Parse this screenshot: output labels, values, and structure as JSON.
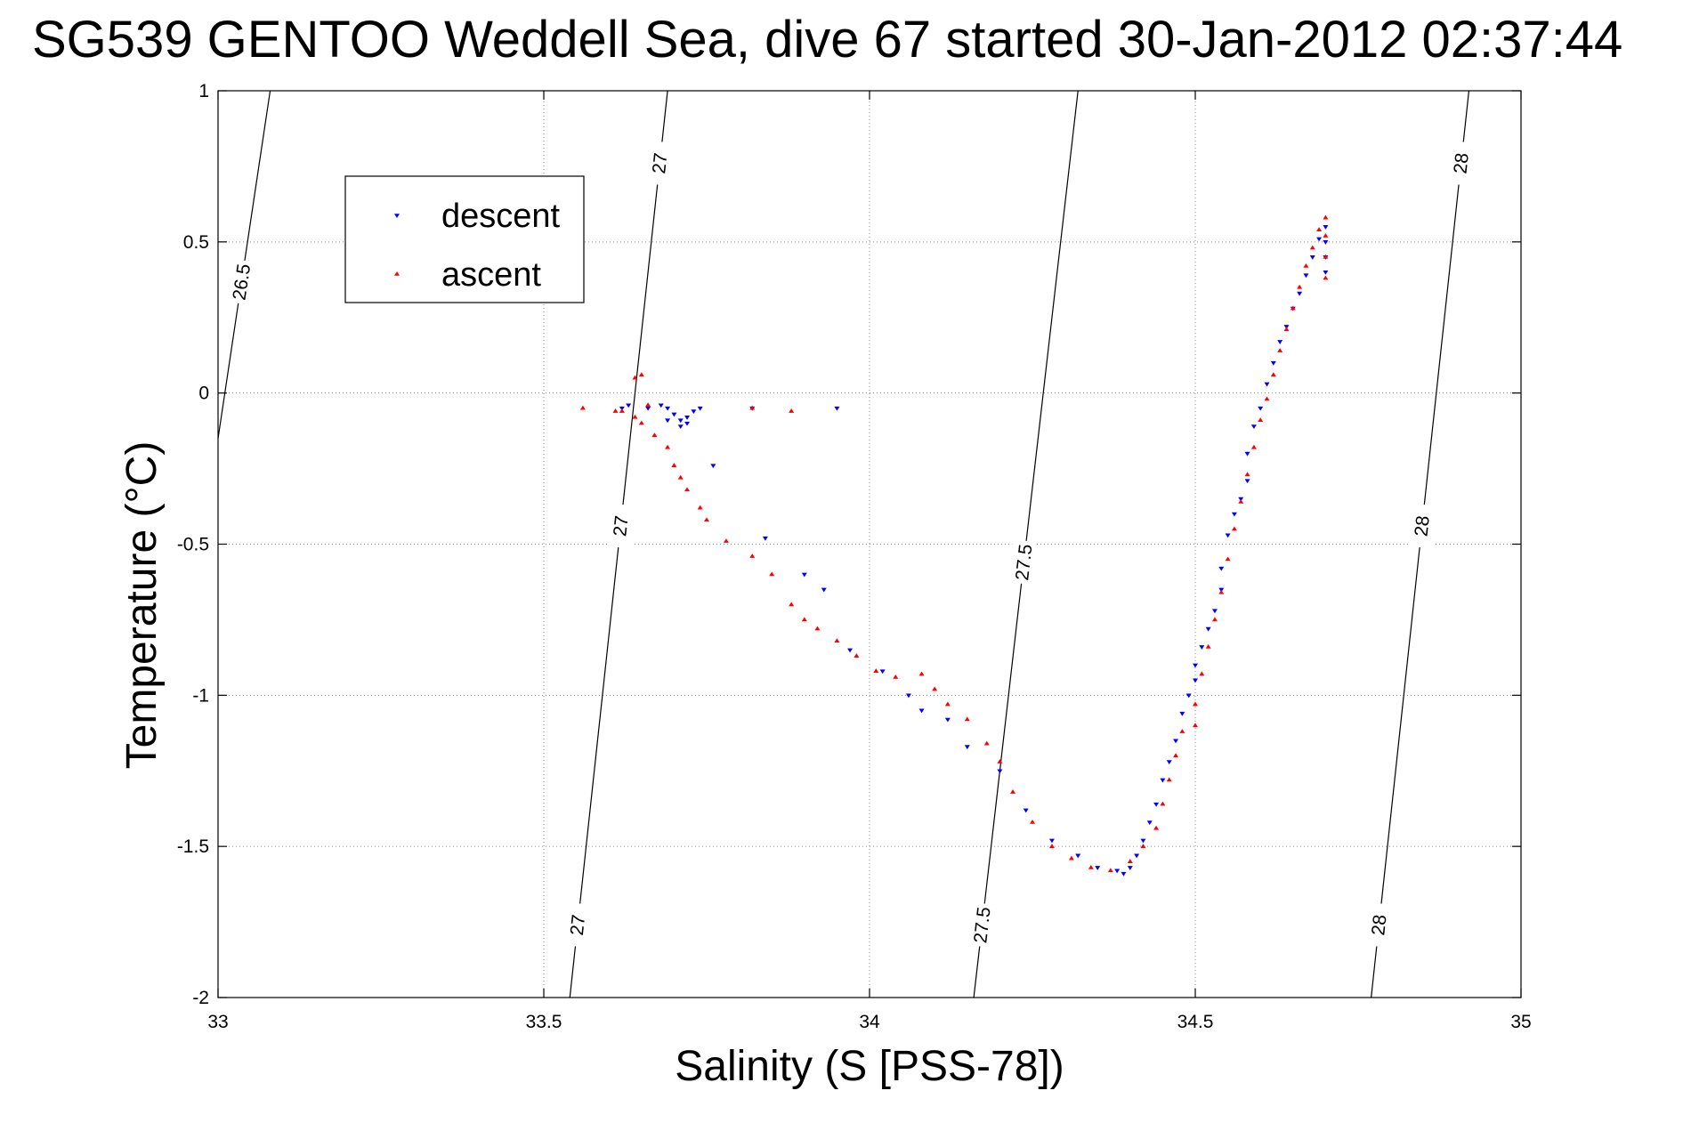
{
  "chart_data": {
    "type": "scatter",
    "title": "SG539 GENTOO Weddell Sea, dive 67 started 30-Jan-2012 02:37:44",
    "xlabel": "Salinity (S [PSS-78])",
    "ylabel": "Temperature (°C)",
    "xlim": [
      33,
      35
    ],
    "ylim": [
      -2,
      1
    ],
    "xticks": [
      33,
      33.5,
      34,
      34.5,
      35
    ],
    "xtick_labels": [
      "33",
      "33.5",
      "34",
      "34.5",
      "35"
    ],
    "yticks": [
      -2,
      -1.5,
      -1,
      -0.5,
      0,
      0.5,
      1
    ],
    "ytick_labels": [
      "-2",
      "-1.5",
      "-1",
      "-0.5",
      "0",
      "0.5",
      "1"
    ],
    "grid": true,
    "legend_position": "top-left",
    "series": [
      {
        "name": "descent",
        "color": "#0000ff",
        "marker": "triangle-down",
        "points": [
          [
            33.62,
            -0.05
          ],
          [
            33.63,
            -0.04
          ],
          [
            33.66,
            -0.05
          ],
          [
            33.68,
            -0.04
          ],
          [
            33.69,
            -0.05
          ],
          [
            33.7,
            -0.07
          ],
          [
            33.71,
            -0.09
          ],
          [
            33.72,
            -0.08
          ],
          [
            33.73,
            -0.06
          ],
          [
            33.74,
            -0.05
          ],
          [
            33.72,
            -0.1
          ],
          [
            33.71,
            -0.11
          ],
          [
            33.69,
            -0.09
          ],
          [
            33.76,
            -0.24
          ],
          [
            33.82,
            -0.05
          ],
          [
            33.95,
            -0.05
          ],
          [
            33.84,
            -0.48
          ],
          [
            33.9,
            -0.6
          ],
          [
            33.93,
            -0.65
          ],
          [
            33.97,
            -0.85
          ],
          [
            34.02,
            -0.92
          ],
          [
            34.06,
            -1.0
          ],
          [
            34.08,
            -1.05
          ],
          [
            34.12,
            -1.08
          ],
          [
            34.15,
            -1.17
          ],
          [
            34.2,
            -1.25
          ],
          [
            34.24,
            -1.38
          ],
          [
            34.28,
            -1.48
          ],
          [
            34.32,
            -1.53
          ],
          [
            34.35,
            -1.57
          ],
          [
            34.38,
            -1.58
          ],
          [
            34.39,
            -1.59
          ],
          [
            34.4,
            -1.57
          ],
          [
            34.41,
            -1.53
          ],
          [
            34.42,
            -1.48
          ],
          [
            34.43,
            -1.42
          ],
          [
            34.44,
            -1.36
          ],
          [
            34.45,
            -1.28
          ],
          [
            34.46,
            -1.22
          ],
          [
            34.47,
            -1.15
          ],
          [
            34.48,
            -1.06
          ],
          [
            34.49,
            -1.0
          ],
          [
            34.5,
            -0.95
          ],
          [
            34.5,
            -0.9
          ],
          [
            34.51,
            -0.84
          ],
          [
            34.52,
            -0.78
          ],
          [
            34.53,
            -0.72
          ],
          [
            34.54,
            -0.65
          ],
          [
            34.54,
            -0.58
          ],
          [
            34.55,
            -0.47
          ],
          [
            34.56,
            -0.4
          ],
          [
            34.57,
            -0.35
          ],
          [
            34.58,
            -0.29
          ],
          [
            34.58,
            -0.2
          ],
          [
            34.59,
            -0.11
          ],
          [
            34.6,
            -0.05
          ],
          [
            34.61,
            0.03
          ],
          [
            34.62,
            0.1
          ],
          [
            34.63,
            0.17
          ],
          [
            34.64,
            0.22
          ],
          [
            34.65,
            0.28
          ],
          [
            34.66,
            0.33
          ],
          [
            34.67,
            0.39
          ],
          [
            34.68,
            0.45
          ],
          [
            34.69,
            0.51
          ],
          [
            34.7,
            0.55
          ],
          [
            34.7,
            0.5
          ],
          [
            34.7,
            0.45
          ],
          [
            34.7,
            0.4
          ]
        ]
      },
      {
        "name": "ascent",
        "color": "#ff0000",
        "marker": "triangle-up",
        "points": [
          [
            33.56,
            -0.05
          ],
          [
            33.61,
            -0.06
          ],
          [
            33.62,
            -0.06
          ],
          [
            33.64,
            -0.08
          ],
          [
            33.65,
            -0.1
          ],
          [
            33.64,
            0.05
          ],
          [
            33.65,
            0.06
          ],
          [
            33.66,
            -0.04
          ],
          [
            33.67,
            -0.14
          ],
          [
            33.69,
            -0.18
          ],
          [
            33.7,
            -0.24
          ],
          [
            33.71,
            -0.28
          ],
          [
            33.72,
            -0.32
          ],
          [
            33.74,
            -0.38
          ],
          [
            33.75,
            -0.42
          ],
          [
            33.78,
            -0.49
          ],
          [
            33.82,
            -0.54
          ],
          [
            33.85,
            -0.6
          ],
          [
            33.88,
            -0.7
          ],
          [
            33.9,
            -0.75
          ],
          [
            33.92,
            -0.78
          ],
          [
            33.95,
            -0.82
          ],
          [
            33.98,
            -0.87
          ],
          [
            34.01,
            -0.92
          ],
          [
            34.04,
            -0.94
          ],
          [
            34.08,
            -0.93
          ],
          [
            34.1,
            -0.98
          ],
          [
            34.12,
            -1.03
          ],
          [
            34.15,
            -1.08
          ],
          [
            34.18,
            -1.16
          ],
          [
            34.2,
            -1.22
          ],
          [
            34.22,
            -1.32
          ],
          [
            34.25,
            -1.42
          ],
          [
            34.28,
            -1.5
          ],
          [
            34.31,
            -1.54
          ],
          [
            34.34,
            -1.57
          ],
          [
            34.37,
            -1.58
          ],
          [
            34.4,
            -1.55
          ],
          [
            34.42,
            -1.5
          ],
          [
            34.44,
            -1.44
          ],
          [
            34.45,
            -1.36
          ],
          [
            34.46,
            -1.28
          ],
          [
            34.47,
            -1.2
          ],
          [
            34.48,
            -1.12
          ],
          [
            34.5,
            -1.1
          ],
          [
            34.5,
            -1.03
          ],
          [
            34.51,
            -0.93
          ],
          [
            34.52,
            -0.84
          ],
          [
            34.53,
            -0.75
          ],
          [
            34.54,
            -0.66
          ],
          [
            34.55,
            -0.55
          ],
          [
            34.56,
            -0.45
          ],
          [
            34.57,
            -0.36
          ],
          [
            34.58,
            -0.27
          ],
          [
            34.59,
            -0.18
          ],
          [
            34.6,
            -0.09
          ],
          [
            34.61,
            -0.02
          ],
          [
            34.62,
            0.06
          ],
          [
            34.63,
            0.14
          ],
          [
            34.64,
            0.21
          ],
          [
            34.65,
            0.28
          ],
          [
            34.66,
            0.35
          ],
          [
            34.67,
            0.42
          ],
          [
            34.68,
            0.48
          ],
          [
            34.69,
            0.54
          ],
          [
            34.7,
            0.58
          ],
          [
            34.7,
            0.52
          ],
          [
            34.7,
            0.45
          ],
          [
            34.7,
            0.38
          ],
          [
            33.82,
            -0.05
          ],
          [
            33.88,
            -0.06
          ]
        ]
      }
    ],
    "density_contours": [
      {
        "level": "26.5",
        "points": [
          [
            33.0,
            -0.15
          ],
          [
            33.08,
            1.0
          ]
        ],
        "labels": [
          "26.5"
        ]
      },
      {
        "level": "27",
        "points": [
          [
            33.54,
            -2.0
          ],
          [
            33.69,
            1.0
          ]
        ],
        "labels": [
          "27",
          "27",
          "27"
        ]
      },
      {
        "level": "27.5",
        "points": [
          [
            34.16,
            -2.0
          ],
          [
            34.32,
            1.0
          ]
        ],
        "labels": [
          "27.5",
          "27.5"
        ]
      },
      {
        "level": "28",
        "points": [
          [
            34.77,
            -2.0
          ],
          [
            34.92,
            1.0
          ]
        ],
        "labels": [
          "28",
          "28",
          "28"
        ]
      }
    ]
  }
}
